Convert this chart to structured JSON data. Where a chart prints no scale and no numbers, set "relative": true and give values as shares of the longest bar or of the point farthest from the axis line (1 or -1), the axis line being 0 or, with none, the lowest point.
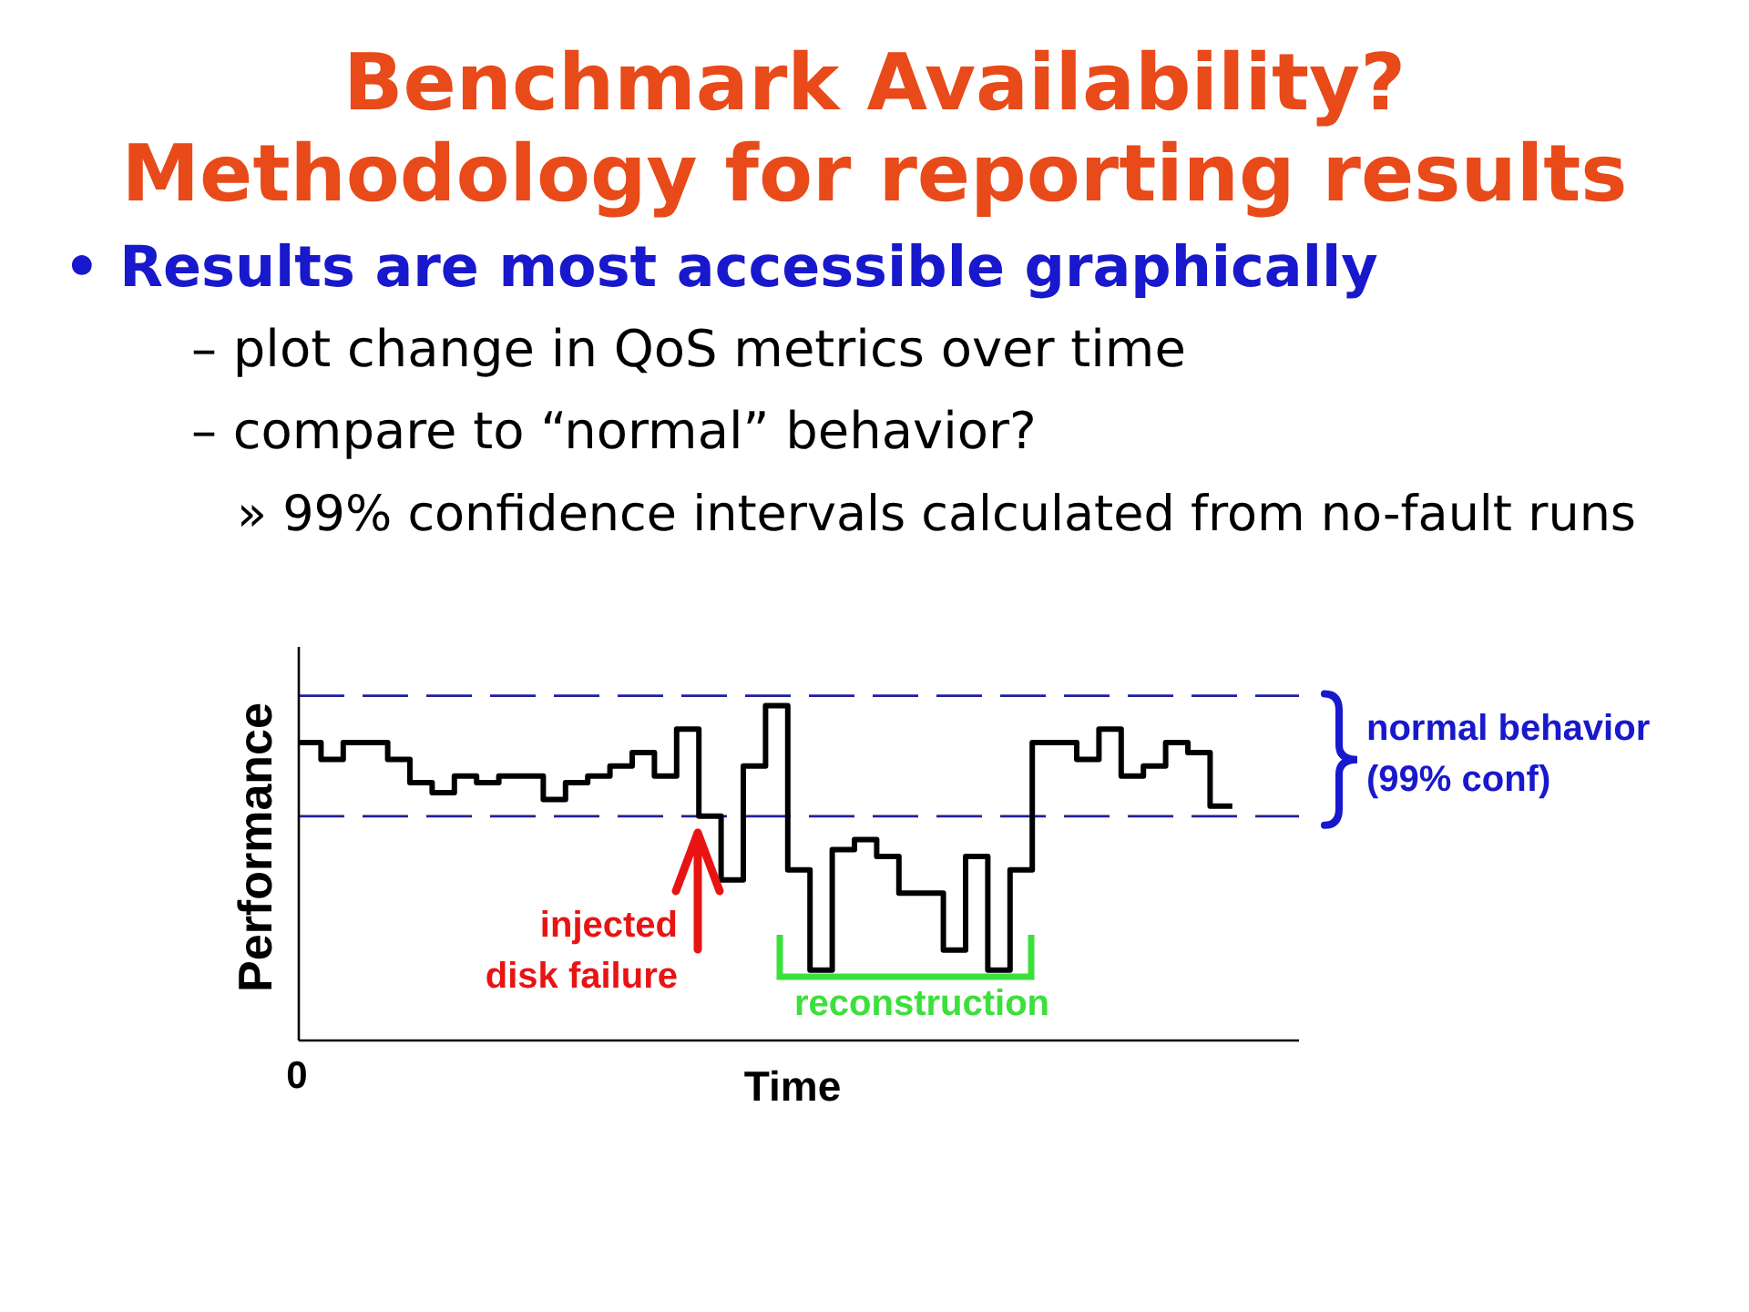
{
  "chart_data": {
    "type": "step",
    "title": "Benchmark Availability?\nMethodology for reporting results",
    "subtitle": "• Results are most accessible graphically\n– plot change in QoS metrics over time\n– compare to “normal” behavior?\n» 99% confidence intervals calculated from no-fault runs",
    "xlabel": "Time",
    "ylabel": "Performance",
    "relative": true,
    "categories": [
      null,
      null,
      null,
      null,
      null,
      null,
      null,
      null,
      null,
      null,
      null,
      null,
      null,
      null,
      null,
      null,
      null,
      null,
      null,
      null,
      null,
      null,
      null,
      null,
      null,
      null,
      null,
      null,
      null,
      null,
      null,
      null,
      null,
      null,
      null,
      null,
      null,
      null,
      null,
      null,
      null,
      null,
      null,
      null,
      null,
      null
    ],
    "series": [
      {
        "color": "#000000",
        "values": [
          0.89,
          0.84,
          0.89,
          0.89,
          0.84,
          0.77,
          0.74,
          0.79,
          0.77,
          0.79,
          0.79,
          0.72,
          0.77,
          0.79,
          0.82,
          0.86,
          0.79,
          0.93,
          0.67,
          0.48,
          0.82,
          1,
          0.51,
          0.21,
          0.57,
          0.6,
          0.55,
          0.44,
          0.44,
          0.27,
          0.55,
          0.21,
          0.51,
          0.89,
          0.89,
          0.84,
          0.93,
          0.79,
          0.82,
          0.89,
          0.86,
          0.7,
          0.7,
          null,
          null,
          null
        ]
      }
    ],
    "ref_lines": [
      {
        "axis": "y",
        "value": 1.03,
        "label": "normal behavior\n(99% conf)",
        "color": "#20209a",
        "line_style": "dashed"
      },
      {
        "axis": "y",
        "value": 0.67,
        "color": "#20209a",
        "line_style": "dashed"
      }
    ],
    "annotations": [
      "0",
      "injected\ndisk failure",
      "reconstruction"
    ]
  }
}
